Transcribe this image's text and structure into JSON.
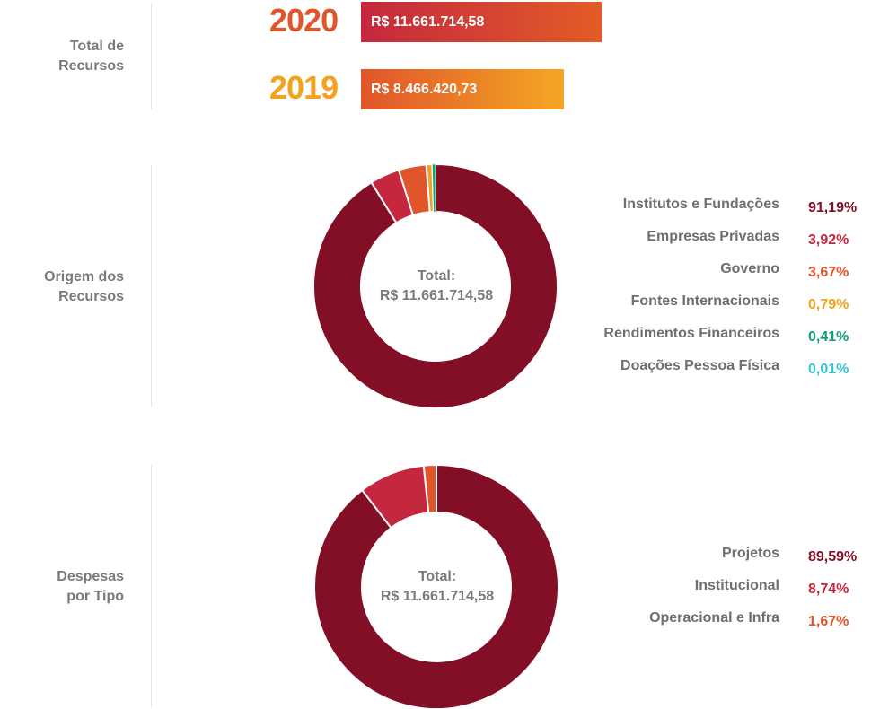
{
  "total_resources": {
    "label": "Total de Recursos",
    "label_lines": [
      "Total de",
      "Recursos"
    ],
    "years": [
      {
        "year": "2020",
        "amount_text": "R$ 11.661.714,58",
        "amount": 11661714.58,
        "color_from": "#c5283e",
        "color_to": "#e35c26",
        "year_color": "#e0552a"
      },
      {
        "year": "2019",
        "amount_text": "R$ 8.466.420,73",
        "amount": 8466420.73,
        "color_from": "#e0552a",
        "color_to": "#f5a623",
        "year_color": "#f4a11f"
      }
    ]
  },
  "chart_data": [
    {
      "type": "pie",
      "title": "",
      "section_label_lines": [
        "Origem dos",
        "Recursos"
      ],
      "center_lines": [
        "Total:",
        "R$ 11.661.714,58"
      ],
      "categories": [
        "Institutos e Fundações",
        "Empresas Privadas",
        "Governo",
        "Fontes Internacionais",
        "Rendimentos Financeiros",
        "Doações Pessoa Física"
      ],
      "values": [
        91.19,
        3.92,
        3.67,
        0.79,
        0.41,
        0.01
      ],
      "value_labels": [
        "91,19%",
        "3,92%",
        "3,67%",
        "0,79%",
        "0,41%",
        "0,01%"
      ],
      "colors": [
        "#820f25",
        "#c5283e",
        "#e0552a",
        "#f4a11f",
        "#0f9e7c",
        "#32c5d2"
      ]
    },
    {
      "type": "pie",
      "title": "",
      "section_label_lines": [
        "Despesas",
        "por Tipo"
      ],
      "center_lines": [
        "Total:",
        "R$ 11.661.714,58"
      ],
      "categories": [
        "Projetos",
        "Institucional",
        "Operacional e Infra"
      ],
      "values": [
        89.59,
        8.74,
        1.67
      ],
      "value_labels": [
        "89,59%",
        "8,74%",
        "1,67%"
      ],
      "colors": [
        "#820f25",
        "#c5283e",
        "#e0552a"
      ]
    }
  ]
}
